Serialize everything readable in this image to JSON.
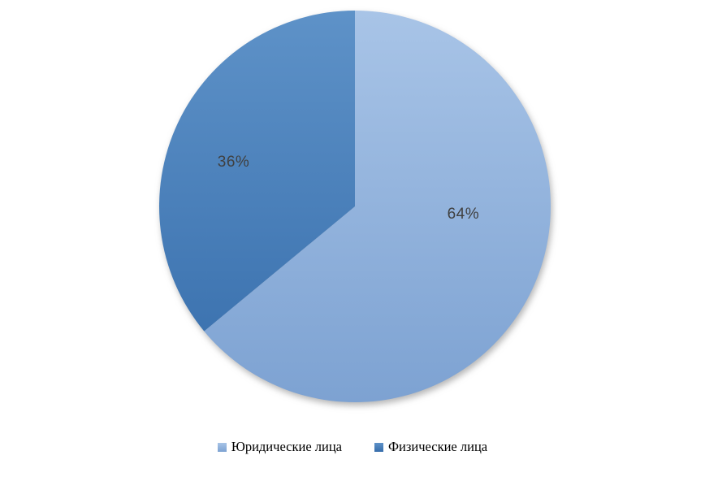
{
  "chart_data": {
    "type": "pie",
    "title": "",
    "slices": [
      {
        "label": "Юридические лица",
        "value": 64,
        "data_label": "64%",
        "color_top": "#a8c4e7",
        "color_bottom": "#7da2d2",
        "label_angle_deg": 94.5,
        "label_radius_frac": 0.555
      },
      {
        "label": "Физические лица",
        "value": 36,
        "data_label": "36%",
        "color_top": "#5e92c8",
        "color_bottom": "#366dab",
        "label_angle_deg": 290,
        "label_radius_frac": 0.66
      }
    ],
    "start_angle_deg": 0,
    "direction": "clockwise",
    "legend_position": "bottom",
    "data_label_color": "#404040",
    "background": "#ffffff"
  }
}
